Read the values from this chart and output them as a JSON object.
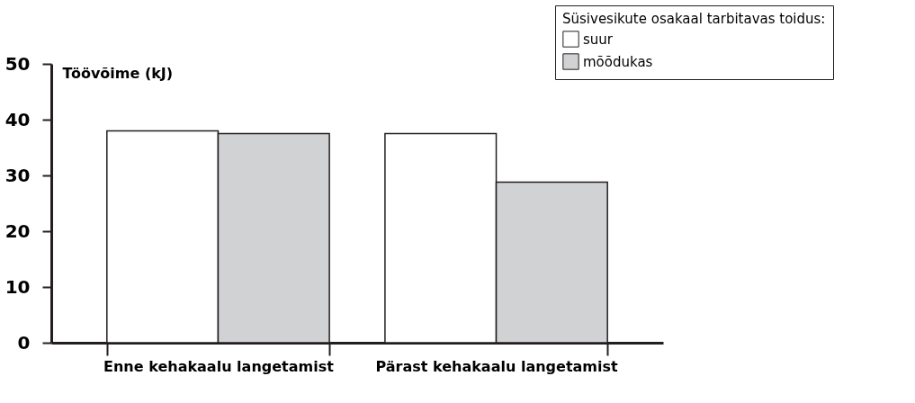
{
  "chart_data": {
    "type": "bar",
    "ylabel": "Töövõime (kJ)",
    "legend_title": "Süsivesikute osakaal tarbitavas toidus:",
    "categories": [
      "Enne kehakaalu langetamist",
      "Pärast kehakaalu langetamist"
    ],
    "series": [
      {
        "name": "suur",
        "color": "#ffffff",
        "values": [
          38.0,
          37.5
        ]
      },
      {
        "name": "mõõdukas",
        "color": "#d1d2d4",
        "values": [
          37.5,
          28.8
        ]
      }
    ],
    "ylim": [
      0,
      50
    ],
    "yticks": [
      0,
      10,
      20,
      30,
      40,
      50
    ],
    "grid": false,
    "legend": "top right"
  }
}
